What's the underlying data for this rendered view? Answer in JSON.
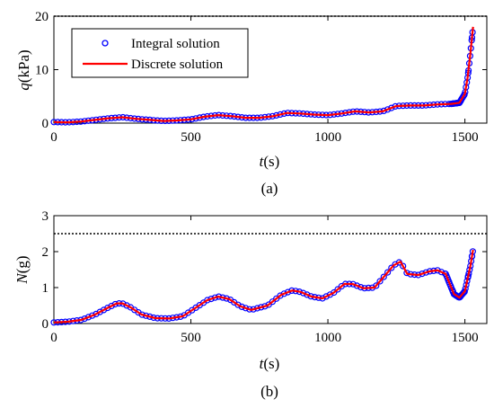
{
  "chart_data": [
    {
      "type": "line",
      "panel_label": "(a)",
      "ylabel_symbol": "q",
      "ylabel_unit": "(kPa)",
      "xlabel_symbol": "t",
      "xlabel_unit": "(s)",
      "xlim": [
        0,
        1580
      ],
      "ylim": [
        0,
        20
      ],
      "xticks": [
        0,
        500,
        1000,
        1500
      ],
      "yticks": [
        0,
        10,
        20
      ],
      "threshold": 20,
      "legend": {
        "placement": "top-left",
        "entries": [
          "Integral solution",
          "Discrete solution"
        ]
      },
      "series": [
        {
          "name": "Integral solution",
          "style": "markers",
          "color": "#0000ff",
          "x": [
            0,
            50,
            100,
            150,
            200,
            250,
            300,
            350,
            400,
            450,
            500,
            550,
            600,
            650,
            700,
            750,
            800,
            850,
            900,
            950,
            1000,
            1050,
            1100,
            1150,
            1200,
            1250,
            1300,
            1350,
            1400,
            1450,
            1480,
            1500,
            1510,
            1520,
            1530
          ],
          "y": [
            0.2,
            0.15,
            0.3,
            0.6,
            0.9,
            1.1,
            0.8,
            0.6,
            0.4,
            0.5,
            0.7,
            1.2,
            1.5,
            1.3,
            1.0,
            1.0,
            1.3,
            1.9,
            1.8,
            1.6,
            1.5,
            1.8,
            2.2,
            2.0,
            2.2,
            3.2,
            3.3,
            3.3,
            3.5,
            3.6,
            3.8,
            5.5,
            8.5,
            13.0,
            18.0
          ]
        },
        {
          "name": "Discrete solution",
          "style": "line",
          "color": "#ff0000",
          "x": [
            0,
            50,
            100,
            150,
            200,
            250,
            300,
            350,
            400,
            450,
            500,
            550,
            600,
            650,
            700,
            750,
            800,
            850,
            900,
            950,
            1000,
            1050,
            1100,
            1150,
            1200,
            1250,
            1300,
            1350,
            1400,
            1450,
            1480,
            1500,
            1510,
            1520,
            1530
          ],
          "y": [
            0.2,
            0.15,
            0.3,
            0.6,
            0.9,
            1.1,
            0.8,
            0.6,
            0.4,
            0.5,
            0.7,
            1.2,
            1.5,
            1.3,
            1.0,
            1.0,
            1.3,
            1.9,
            1.8,
            1.6,
            1.5,
            1.8,
            2.2,
            2.0,
            2.2,
            3.2,
            3.3,
            3.3,
            3.5,
            3.6,
            3.8,
            5.5,
            8.5,
            13.0,
            18.0
          ]
        }
      ]
    },
    {
      "type": "line",
      "panel_label": "(b)",
      "ylabel_symbol": "N",
      "ylabel_unit": "(g)",
      "xlabel_symbol": "t",
      "xlabel_unit": "(s)",
      "xlim": [
        0,
        1580
      ],
      "ylim": [
        0,
        3
      ],
      "xticks": [
        0,
        500,
        1000,
        1500
      ],
      "yticks": [
        0,
        1,
        2,
        3
      ],
      "threshold": 2.5,
      "series": [
        {
          "name": "Integral solution",
          "style": "markers",
          "color": "#0000ff",
          "x": [
            0,
            50,
            100,
            150,
            200,
            230,
            250,
            280,
            320,
            370,
            420,
            470,
            520,
            560,
            600,
            640,
            680,
            720,
            780,
            830,
            870,
            900,
            940,
            980,
            1020,
            1060,
            1090,
            1130,
            1170,
            1210,
            1240,
            1265,
            1290,
            1330,
            1370,
            1400,
            1430,
            1460,
            1480,
            1500,
            1520,
            1530
          ],
          "y": [
            0.03,
            0.05,
            0.1,
            0.25,
            0.45,
            0.56,
            0.56,
            0.45,
            0.25,
            0.15,
            0.14,
            0.2,
            0.45,
            0.65,
            0.75,
            0.68,
            0.48,
            0.38,
            0.5,
            0.8,
            0.92,
            0.88,
            0.75,
            0.7,
            0.85,
            1.1,
            1.1,
            0.98,
            1.0,
            1.35,
            1.62,
            1.72,
            1.38,
            1.35,
            1.45,
            1.48,
            1.38,
            0.82,
            0.72,
            0.9,
            1.6,
            2.05
          ]
        },
        {
          "name": "Discrete solution",
          "style": "line",
          "color": "#ff0000",
          "x": [
            0,
            50,
            100,
            150,
            200,
            230,
            250,
            280,
            320,
            370,
            420,
            470,
            520,
            560,
            600,
            640,
            680,
            720,
            780,
            830,
            870,
            900,
            940,
            980,
            1020,
            1060,
            1090,
            1130,
            1170,
            1210,
            1240,
            1265,
            1290,
            1330,
            1370,
            1400,
            1430,
            1460,
            1480,
            1500,
            1520,
            1530
          ],
          "y": [
            0.03,
            0.05,
            0.1,
            0.25,
            0.45,
            0.56,
            0.56,
            0.45,
            0.25,
            0.15,
            0.14,
            0.2,
            0.45,
            0.65,
            0.75,
            0.68,
            0.48,
            0.38,
            0.5,
            0.8,
            0.92,
            0.88,
            0.75,
            0.7,
            0.85,
            1.1,
            1.1,
            0.98,
            1.0,
            1.35,
            1.62,
            1.72,
            1.38,
            1.35,
            1.45,
            1.48,
            1.38,
            0.82,
            0.72,
            0.9,
            1.6,
            2.05
          ]
        }
      ]
    }
  ]
}
